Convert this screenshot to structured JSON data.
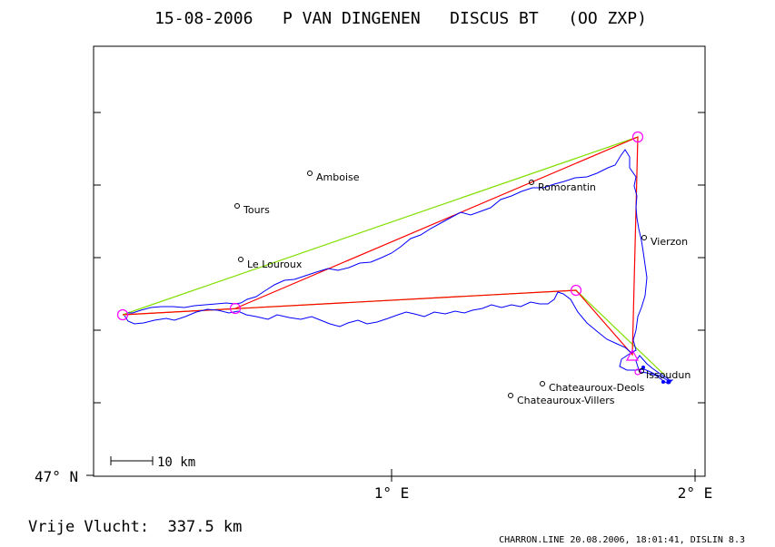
{
  "title": "15-08-2006   P VAN DINGENEN   DISCUS BT   (OO ZXP)",
  "axes": {
    "y_label": "47° N",
    "x_labels": [
      "1° E",
      "2° E"
    ]
  },
  "scale_bar": {
    "label": "10 km"
  },
  "footer": {
    "distance": "Vrije Vlucht:  337.5 km",
    "credit": "CHARRON.LINE 20.08.2006, 18:01:41, DISLIN 8.3"
  },
  "places": [
    {
      "name": "Amboise"
    },
    {
      "name": "Tours"
    },
    {
      "name": "Romorantin"
    },
    {
      "name": "Vierzon"
    },
    {
      "name": "Le Louroux"
    },
    {
      "name": "Issoudun"
    },
    {
      "name": "Chateauroux-Deols"
    },
    {
      "name": "Chateauroux-Villers"
    }
  ],
  "colors": {
    "track": "#0000ff",
    "task_red": "#ff0000",
    "task_green": "#80e000",
    "turnpoint": "#ff00ff",
    "frame": "#000000"
  }
}
